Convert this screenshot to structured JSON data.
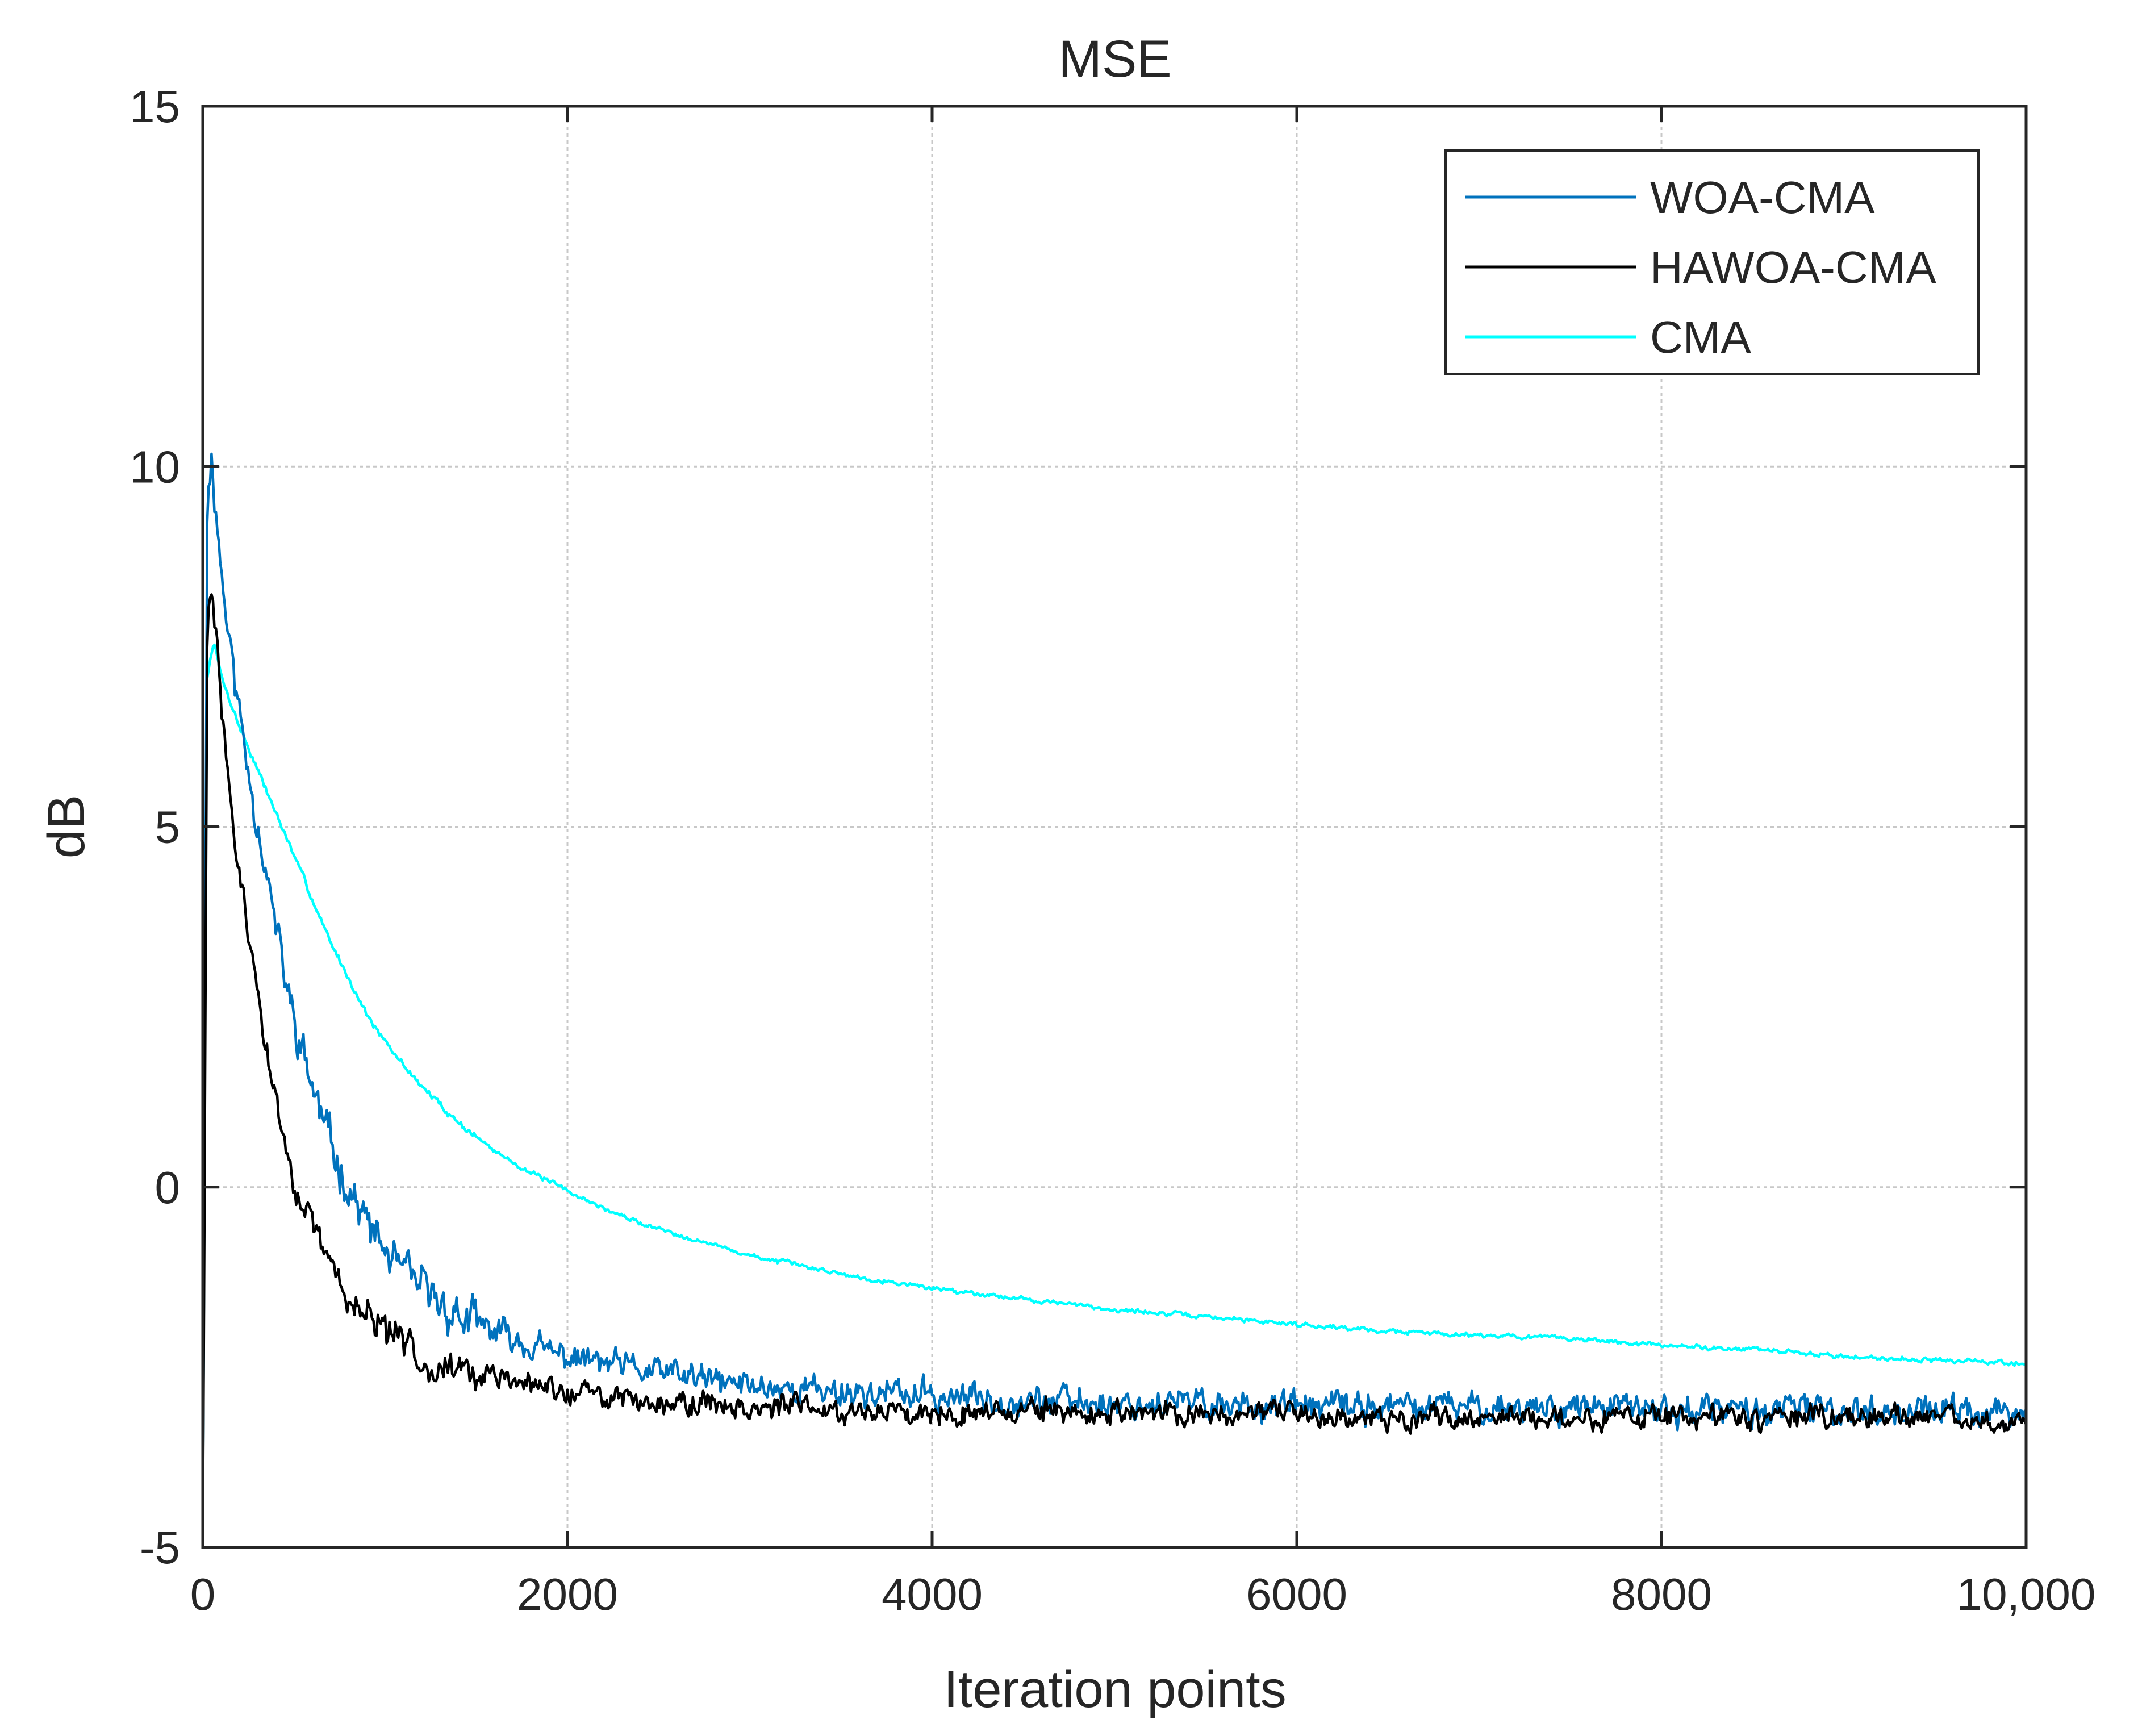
{
  "chart_data": {
    "type": "line",
    "title": "MSE",
    "xlabel": "Iteration points",
    "ylabel": "dB",
    "xlim": [
      0,
      10000
    ],
    "ylim": [
      -5,
      15
    ],
    "grid": true,
    "legend_position": "top-right",
    "xticks": [
      0,
      2000,
      4000,
      6000,
      8000,
      10000
    ],
    "xtick_labels": [
      "0",
      "2000",
      "4000",
      "6000",
      "8000",
      "10,000"
    ],
    "yticks": [
      -5,
      0,
      5,
      10,
      15
    ],
    "ytick_labels": [
      "-5",
      "0",
      "5",
      "10",
      "15"
    ],
    "series": [
      {
        "name": "WOA-CMA",
        "color": "#0072BD",
        "x": [
          0,
          25,
          50,
          100,
          150,
          200,
          250,
          300,
          350,
          400,
          450,
          500,
          600,
          700,
          800,
          900,
          1000,
          1100,
          1200,
          1300,
          1400,
          1500,
          1600,
          1700,
          1800,
          1900,
          2000,
          2200,
          2400,
          2600,
          2800,
          3000,
          3300,
          3600,
          4000,
          4500,
          5000,
          5500,
          6000,
          6500,
          7000,
          7500,
          8000,
          8500,
          9000,
          9500,
          10000
        ],
        "values": [
          -5.0,
          9.8,
          10.1,
          8.6,
          7.5,
          6.6,
          5.8,
          5.1,
          4.4,
          3.6,
          2.9,
          2.3,
          1.4,
          0.6,
          0.0,
          -0.5,
          -0.9,
          -1.2,
          -1.4,
          -1.6,
          -1.8,
          -1.9,
          -2.0,
          -2.1,
          -2.2,
          -2.3,
          -2.35,
          -2.45,
          -2.55,
          -2.6,
          -2.7,
          -2.75,
          -2.8,
          -2.85,
          -2.9,
          -2.95,
          -3.0,
          -3.0,
          -3.05,
          -3.05,
          -3.05,
          -3.05,
          -3.1,
          -3.1,
          -3.1,
          -3.1,
          -3.15
        ],
        "noise": 0.32,
        "seed": 11
      },
      {
        "name": "HAWOA-CMA",
        "color": "#000000",
        "x": [
          0,
          25,
          50,
          100,
          150,
          200,
          250,
          300,
          350,
          400,
          450,
          500,
          600,
          700,
          800,
          900,
          1000,
          1100,
          1200,
          1300,
          1400,
          1500,
          1600,
          1700,
          1800,
          1900,
          2000,
          2200,
          2400,
          2600,
          2800,
          3000,
          3300,
          3600,
          4000,
          4500,
          5000,
          5500,
          6000,
          6500,
          7000,
          7500,
          8000,
          8500,
          9000,
          9500,
          10000
        ],
        "values": [
          -5.0,
          8.0,
          8.2,
          6.8,
          5.4,
          4.3,
          3.5,
          2.7,
          1.9,
          1.2,
          0.6,
          0.1,
          -0.6,
          -1.1,
          -1.5,
          -1.8,
          -2.0,
          -2.2,
          -2.35,
          -2.45,
          -2.55,
          -2.6,
          -2.65,
          -2.7,
          -2.75,
          -2.8,
          -2.85,
          -2.9,
          -2.95,
          -3.0,
          -3.0,
          -3.05,
          -3.05,
          -3.1,
          -3.1,
          -3.1,
          -3.15,
          -3.15,
          -3.15,
          -3.2,
          -3.2,
          -3.2,
          -3.2,
          -3.2,
          -3.2,
          -3.2,
          -3.25
        ],
        "noise": 0.26,
        "seed": 29
      },
      {
        "name": "CMA",
        "color": "#00FFFF",
        "x": [
          0,
          20,
          60,
          100,
          200,
          300,
          400,
          500,
          600,
          700,
          800,
          900,
          1000,
          1200,
          1400,
          1600,
          1800,
          2000,
          2200,
          2400,
          2600,
          2800,
          3000,
          3300,
          3600,
          4000,
          4500,
          5000,
          5500,
          6000,
          6500,
          7000,
          7500,
          8000,
          8500,
          9000,
          9500,
          10000
        ],
        "values": [
          -5.0,
          7.0,
          7.6,
          7.1,
          6.4,
          5.8,
          5.2,
          4.6,
          4.0,
          3.4,
          2.9,
          2.4,
          2.0,
          1.4,
          0.9,
          0.5,
          0.2,
          -0.05,
          -0.3,
          -0.5,
          -0.65,
          -0.8,
          -0.95,
          -1.1,
          -1.25,
          -1.4,
          -1.55,
          -1.7,
          -1.8,
          -1.9,
          -2.0,
          -2.05,
          -2.1,
          -2.2,
          -2.25,
          -2.35,
          -2.4,
          -2.45
        ],
        "noise": 0.05,
        "seed": 7
      }
    ]
  }
}
